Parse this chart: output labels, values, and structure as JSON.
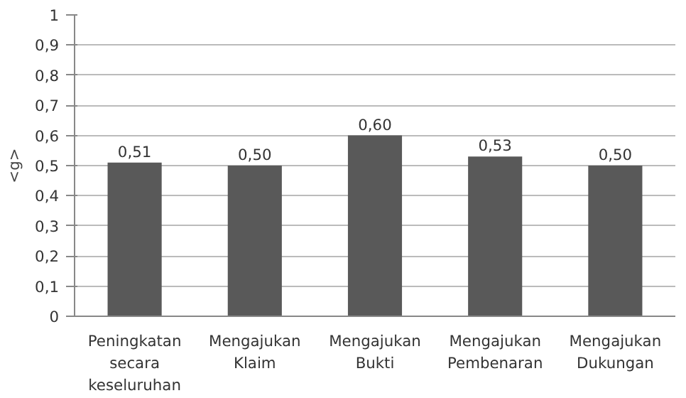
{
  "chart_data": {
    "type": "bar",
    "ylabel": "<g>",
    "categories": [
      "Peningkatan secara keseluruhan",
      "Mengajukan Klaim",
      "Mengajukan Bukti",
      "Mengajukan Pembenaran",
      "Mengajukan Dukungan"
    ],
    "values": [
      0.51,
      0.5,
      0.6,
      0.53,
      0.5
    ],
    "value_labels": [
      "0,51",
      "0,50",
      "0,60",
      "0,53",
      "0,50"
    ],
    "color": "#595959",
    "ylim": [
      0,
      1
    ],
    "yticks": [
      0,
      {
        "value": 0.1,
        "label": "0,1"
      },
      {
        "value": 0.2,
        "label": "0,2"
      },
      {
        "value": 0.3,
        "label": "0,3"
      },
      {
        "value": 0.4,
        "label": "0,4"
      },
      {
        "value": 0.5,
        "label": "0,5"
      },
      {
        "value": 0.6,
        "label": "0,6"
      },
      {
        "value": 0.7,
        "label": "0,7"
      },
      {
        "value": 0.8,
        "label": "0,8"
      },
      {
        "value": 0.9,
        "label": "0,9"
      },
      1
    ],
    "grid": "y"
  }
}
